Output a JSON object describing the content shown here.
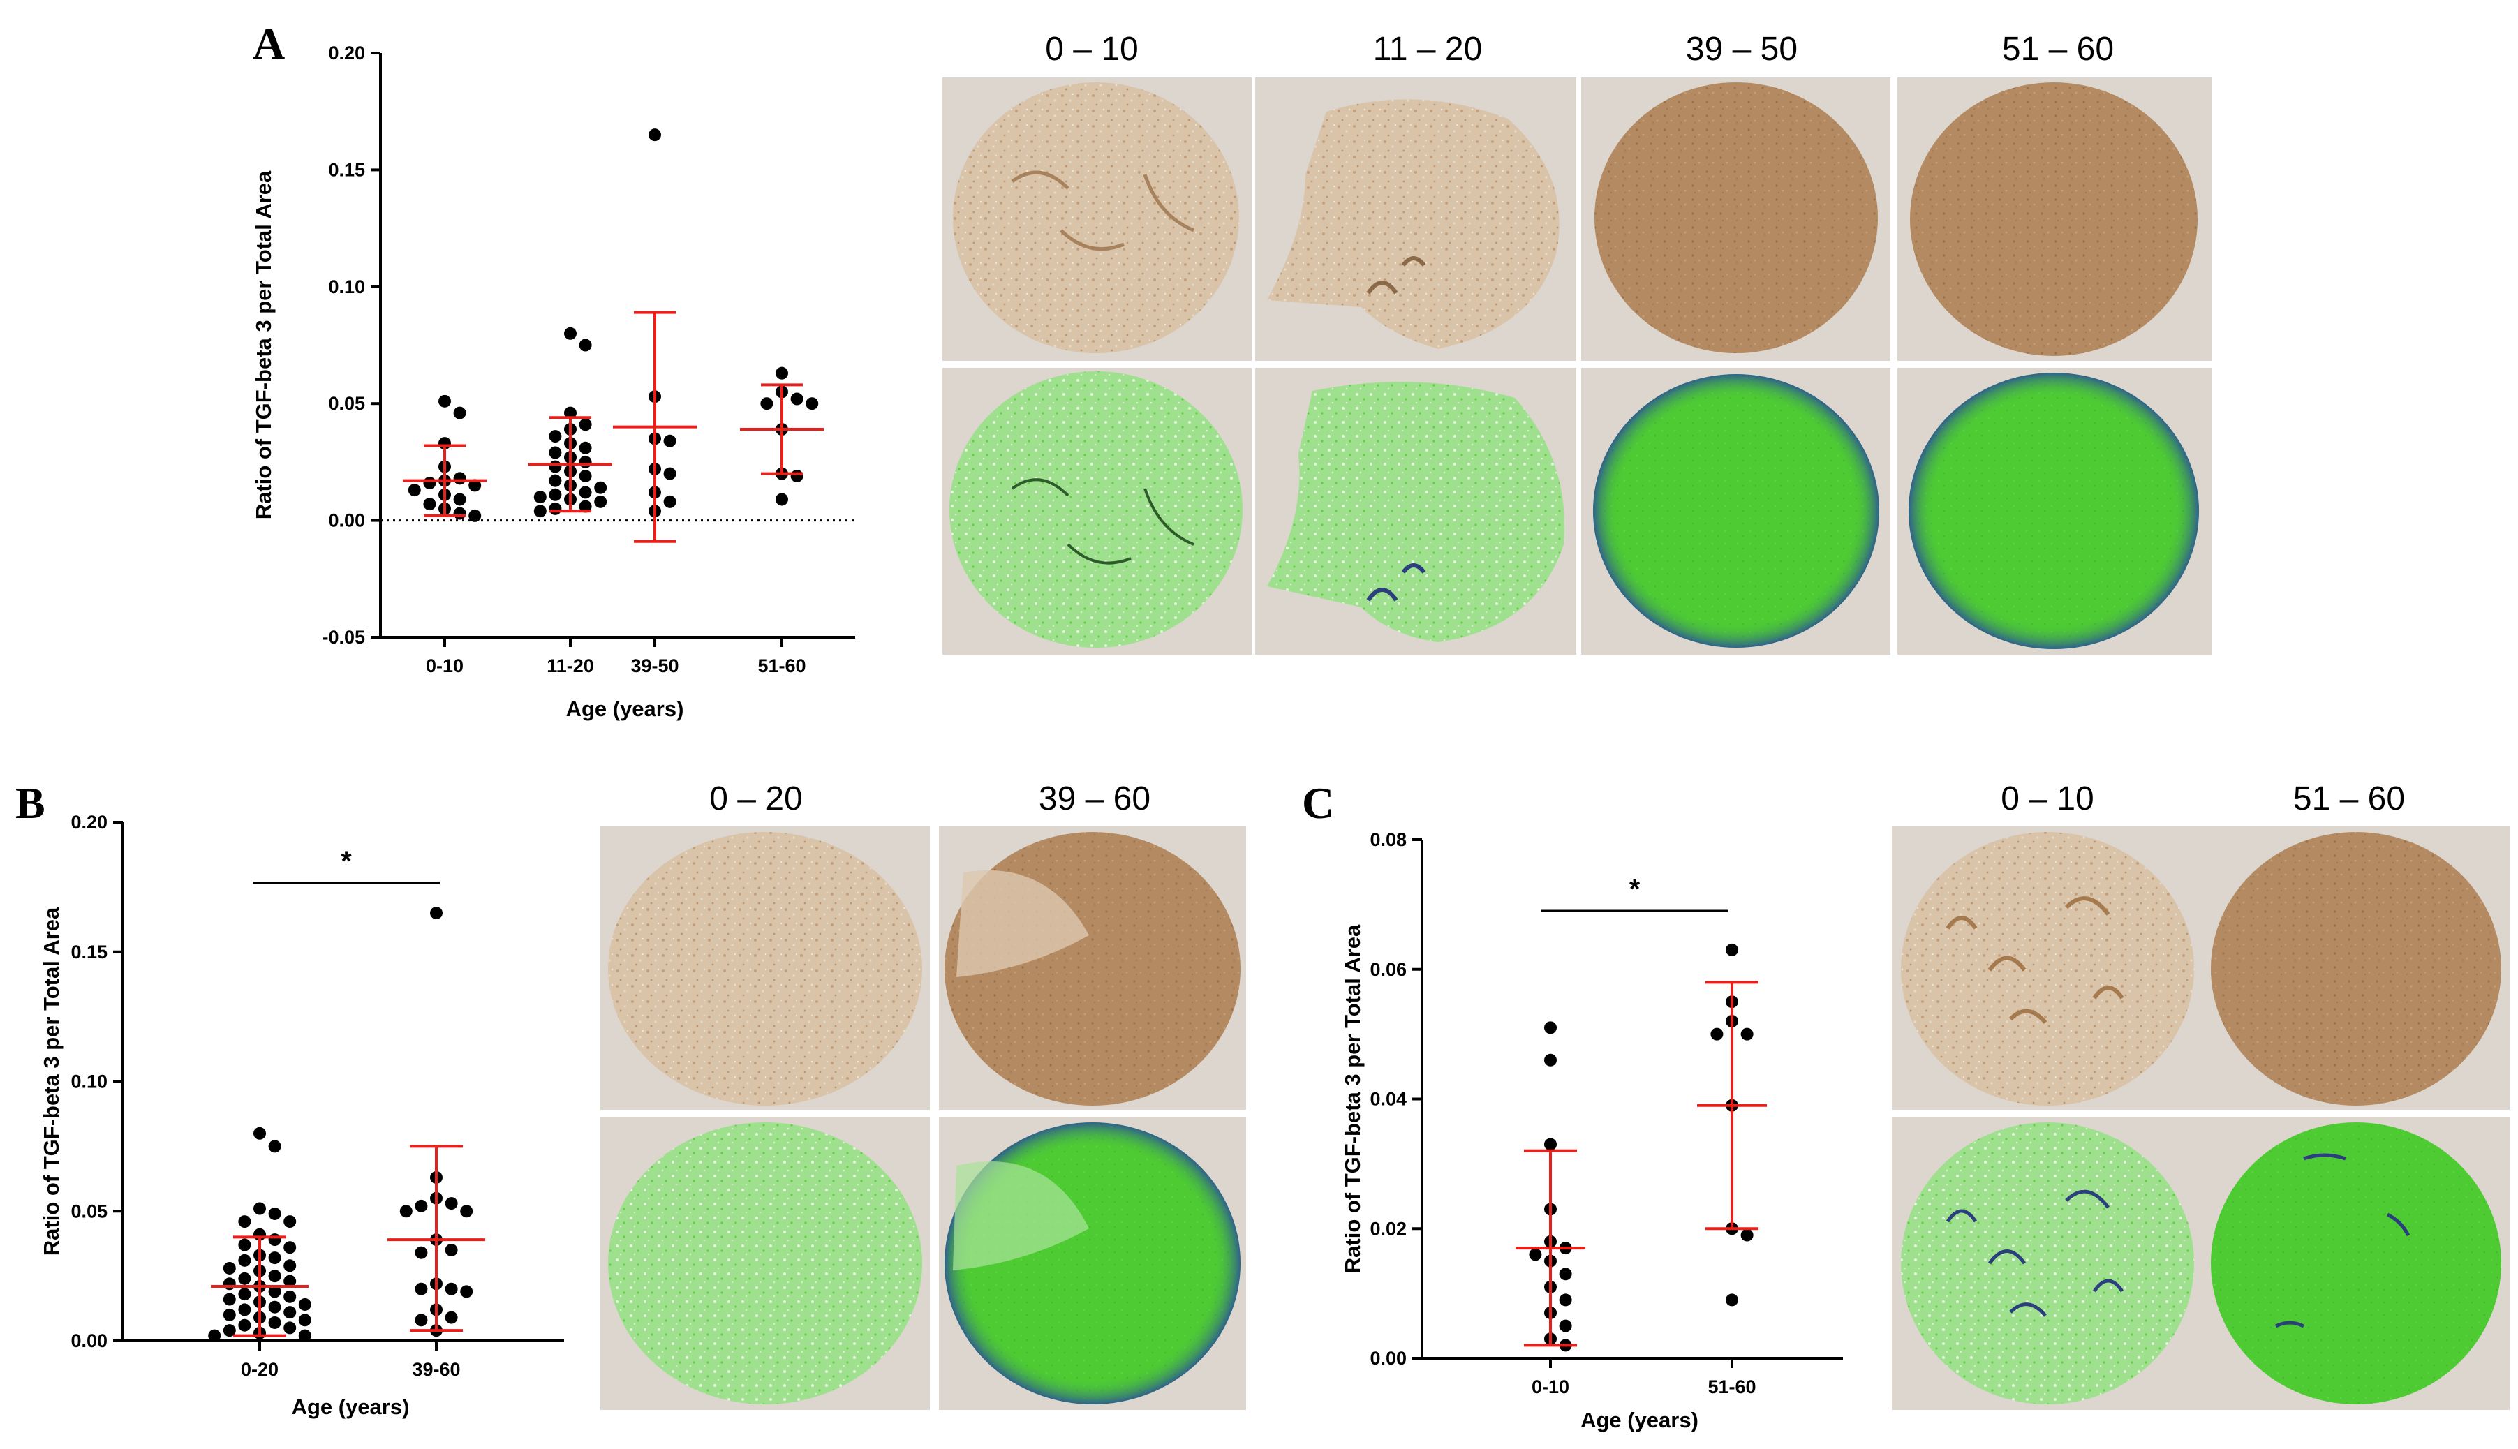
{
  "colors": {
    "point": "#000000",
    "error_bar": "#e8201c",
    "tissue_background": "#dbd6ce",
    "light_brown": "#d9c2a6",
    "dark_brown": "#b08860",
    "green_light": "#a9e39a",
    "green_dark": "#4fcd34",
    "blue_edge": "#2f4fa0"
  },
  "chart_data": [
    {
      "panel": "A",
      "type": "scatter",
      "ylabel": "Ratio of TGF-beta 3 per Total Area",
      "xlabel": "Age (years)",
      "ylim": [
        -0.05,
        0.2
      ],
      "yticks": [
        "0.20",
        "0.15",
        "0.10",
        "0.05",
        "0.00",
        "-0.05"
      ],
      "yticks_values": [
        0.2,
        0.15,
        0.1,
        0.05,
        0.0,
        -0.05
      ],
      "zero_line": true,
      "categories": [
        "0-10",
        "11-20",
        "39-50",
        "51-60"
      ],
      "points": [
        [
          0.051,
          0.046,
          0.033,
          0.023,
          0.018,
          0.017,
          0.016,
          0.015,
          0.013,
          0.011,
          0.009,
          0.007,
          0.005,
          0.003,
          0.002
        ],
        [
          0.08,
          0.075,
          0.046,
          0.041,
          0.039,
          0.036,
          0.033,
          0.031,
          0.029,
          0.027,
          0.025,
          0.023,
          0.021,
          0.019,
          0.017,
          0.015,
          0.014,
          0.012,
          0.011,
          0.01,
          0.009,
          0.008,
          0.006,
          0.005,
          0.004
        ],
        [
          0.165,
          0.053,
          0.035,
          0.034,
          0.022,
          0.02,
          0.012,
          0.008,
          0.004
        ],
        [
          0.063,
          0.055,
          0.052,
          0.05,
          0.05,
          0.039,
          0.02,
          0.019,
          0.009
        ]
      ],
      "mean": [
        0.017,
        0.024,
        0.04,
        0.039
      ],
      "sd_low": [
        0.002,
        0.004,
        -0.009,
        0.02
      ],
      "sd_high": [
        0.032,
        0.044,
        0.089,
        0.058
      ]
    },
    {
      "panel": "B",
      "type": "scatter",
      "ylabel": "Ratio of TGF-beta 3 per Total Area",
      "xlabel": "Age (years)",
      "ylim": [
        0.0,
        0.2
      ],
      "yticks": [
        "0.20",
        "0.15",
        "0.10",
        "0.05",
        "0.00"
      ],
      "yticks_values": [
        0.2,
        0.15,
        0.1,
        0.05,
        0.0
      ],
      "zero_line": false,
      "categories": [
        "0-20",
        "39-60"
      ],
      "significance": "*",
      "points": [
        [
          0.08,
          0.075,
          0.051,
          0.049,
          0.046,
          0.046,
          0.041,
          0.039,
          0.037,
          0.036,
          0.033,
          0.032,
          0.031,
          0.029,
          0.028,
          0.027,
          0.025,
          0.024,
          0.023,
          0.022,
          0.021,
          0.019,
          0.018,
          0.017,
          0.016,
          0.015,
          0.014,
          0.013,
          0.012,
          0.011,
          0.01,
          0.009,
          0.008,
          0.007,
          0.006,
          0.005,
          0.004,
          0.003,
          0.002,
          0.002
        ],
        [
          0.165,
          0.063,
          0.055,
          0.053,
          0.052,
          0.05,
          0.05,
          0.039,
          0.035,
          0.034,
          0.022,
          0.02,
          0.02,
          0.019,
          0.012,
          0.009,
          0.008,
          0.004
        ]
      ],
      "mean": [
        0.021,
        0.039
      ],
      "sd_low": [
        0.002,
        0.004
      ],
      "sd_high": [
        0.04,
        0.075
      ]
    },
    {
      "panel": "C",
      "type": "scatter",
      "ylabel": "Ratio of TGF-beta 3 per Total Area",
      "xlabel": "Age (years)",
      "ylim": [
        0.0,
        0.08
      ],
      "yticks": [
        "0.08",
        "0.06",
        "0.04",
        "0.02",
        "0.00"
      ],
      "yticks_values": [
        0.08,
        0.06,
        0.04,
        0.02,
        0.0
      ],
      "zero_line": false,
      "categories": [
        "0-10",
        "51-60"
      ],
      "significance": "*",
      "points": [
        [
          0.051,
          0.046,
          0.033,
          0.023,
          0.018,
          0.017,
          0.016,
          0.015,
          0.013,
          0.011,
          0.009,
          0.007,
          0.005,
          0.003,
          0.002
        ],
        [
          0.063,
          0.055,
          0.052,
          0.05,
          0.05,
          0.039,
          0.02,
          0.019,
          0.009
        ]
      ],
      "mean": [
        0.017,
        0.039
      ],
      "sd_low": [
        0.002,
        0.02
      ],
      "sd_high": [
        0.032,
        0.058
      ]
    }
  ],
  "image_panels": {
    "A": [
      "0 – 10",
      "11 – 20",
      "39 – 50",
      "51 – 60"
    ],
    "B": [
      "0 – 20",
      "39 – 60"
    ],
    "C": [
      "0 – 10",
      "51 – 60"
    ]
  },
  "panel_letters": [
    "A",
    "B",
    "C"
  ]
}
